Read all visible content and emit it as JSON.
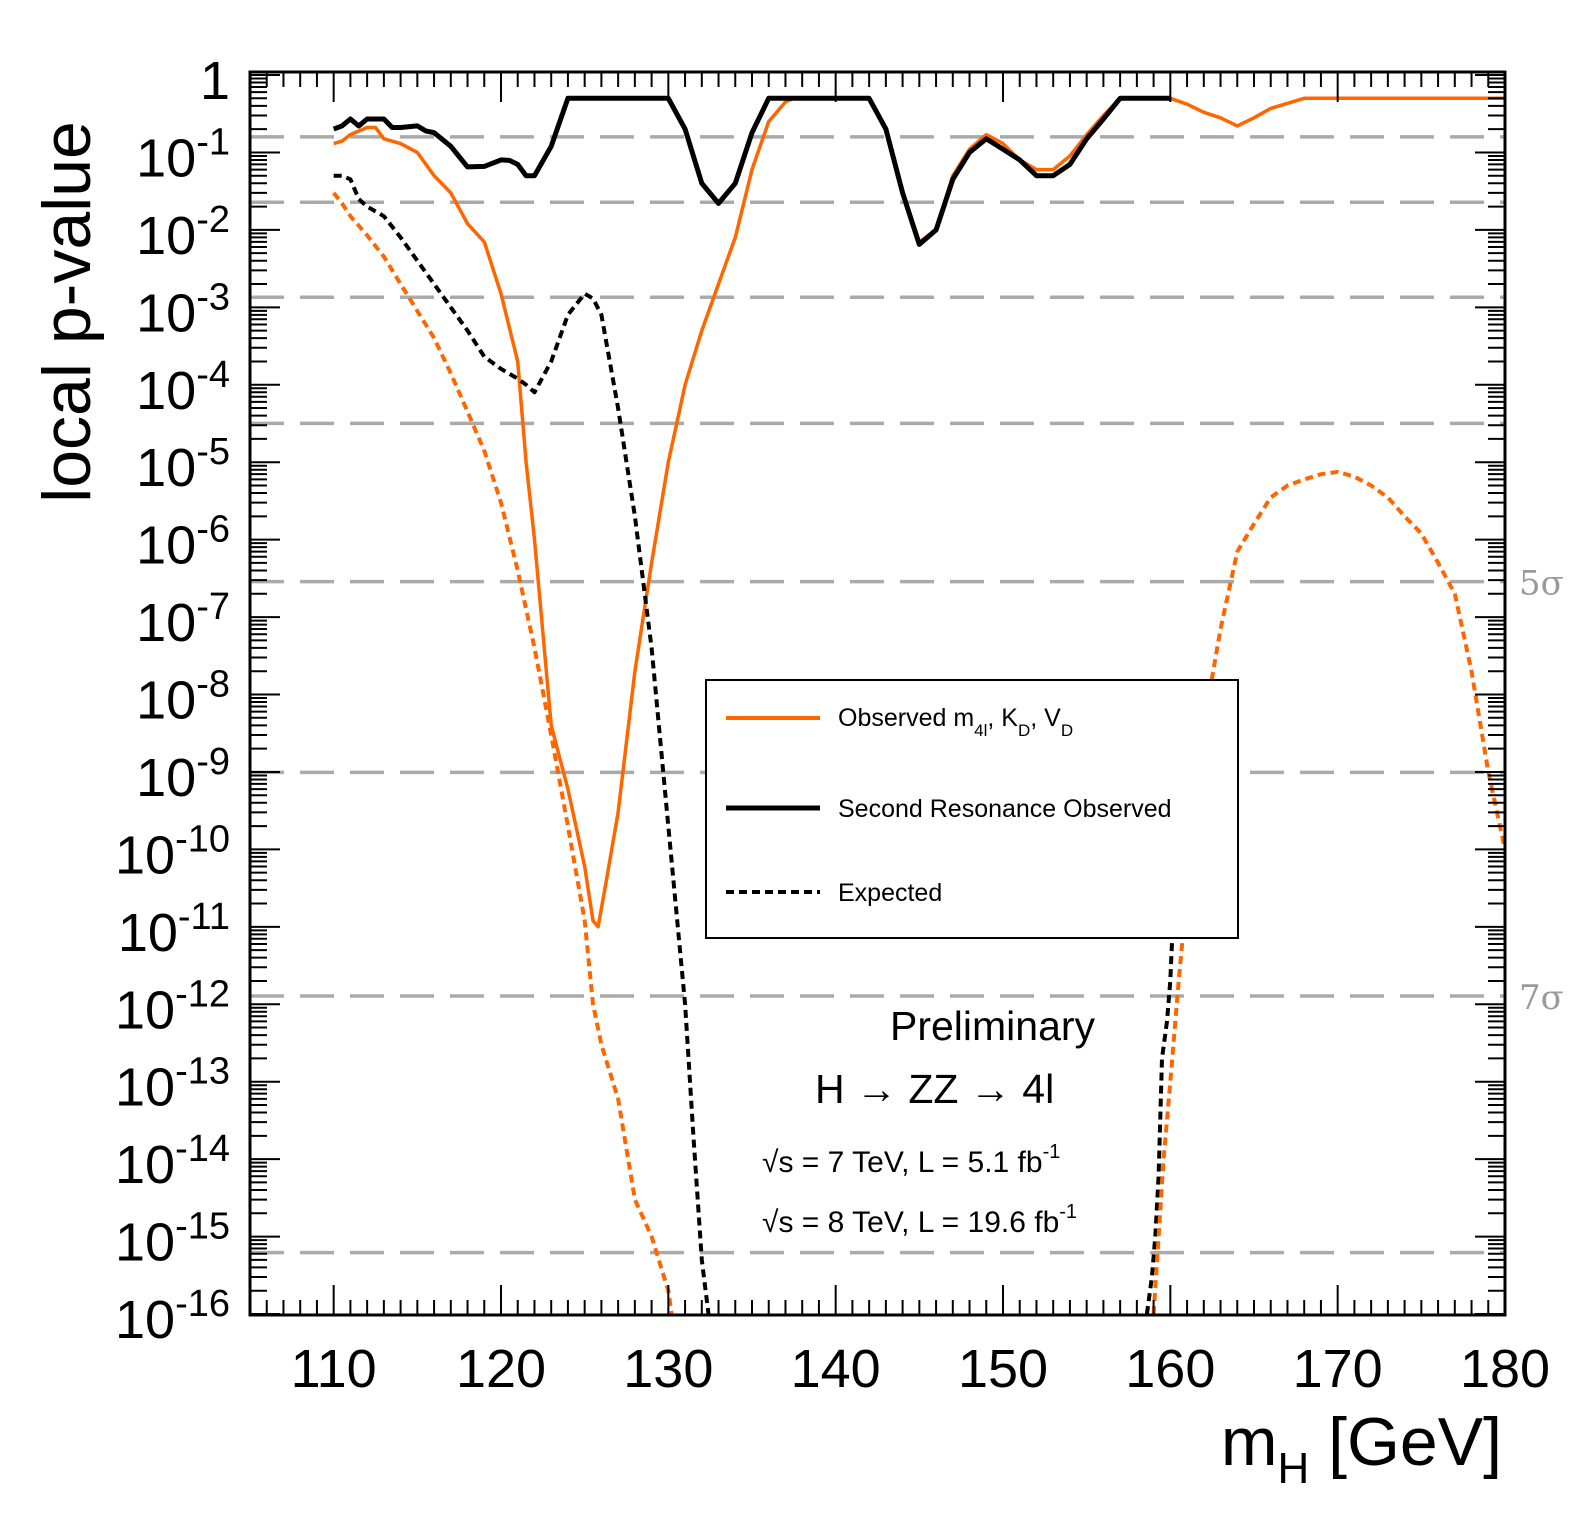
{
  "chart_data": {
    "type": "line",
    "xlabel": "m",
    "xlabel_sub": "H",
    "xlabel_unit": " [GeV]",
    "ylabel": "local p-value",
    "xlim": [
      105,
      180
    ],
    "ylim": [
      1e-16,
      1
    ],
    "y_scale": "log",
    "x_ticks": [
      110,
      120,
      130,
      140,
      150,
      160,
      170,
      180
    ],
    "y_ticks": [
      {
        "exp": 0,
        "label": "1"
      },
      {
        "exp": -1,
        "label": "-1"
      },
      {
        "exp": -2,
        "label": "-2"
      },
      {
        "exp": -3,
        "label": "-3"
      },
      {
        "exp": -4,
        "label": "-4"
      },
      {
        "exp": -5,
        "label": "-5"
      },
      {
        "exp": -6,
        "label": "-6"
      },
      {
        "exp": -7,
        "label": "-7"
      },
      {
        "exp": -8,
        "label": "-8"
      },
      {
        "exp": -9,
        "label": "-9"
      },
      {
        "exp": -10,
        "label": "-10"
      },
      {
        "exp": -11,
        "label": "-11"
      },
      {
        "exp": -12,
        "label": "-12"
      },
      {
        "exp": -13,
        "label": "-13"
      },
      {
        "exp": -14,
        "label": "-14"
      },
      {
        "exp": -15,
        "label": "-15"
      },
      {
        "exp": -16,
        "label": "-16"
      }
    ],
    "y_tick_base": "10",
    "sigma_lines": [
      {
        "label": "",
        "p": 0.1587
      },
      {
        "label": "",
        "p": 0.02275
      },
      {
        "label": "",
        "p": 0.00135
      },
      {
        "label": "",
        "p": 3.17e-05
      },
      {
        "label": "5σ",
        "p": 2.87e-07
      },
      {
        "label": "",
        "p": 9.87e-10
      },
      {
        "label": "7σ",
        "p": 1.28e-12
      },
      {
        "label": "",
        "p": 6.2e-16
      }
    ],
    "legend": {
      "placement": "center-right",
      "entries": [
        {
          "label": "Observed m",
          "sub1": "4l",
          "mid1": ", K",
          "sub2": "D",
          "mid2": ", V",
          "sub3": "D",
          "color": "#ff6600",
          "style": "solid",
          "width": 4
        },
        {
          "label": "Second Resonance Observed",
          "color": "#000000",
          "style": "solid",
          "width": 5
        },
        {
          "label": "Expected",
          "color": "#000000",
          "style": "dashed",
          "width": 4
        }
      ]
    },
    "annotations": {
      "prelim": "Preliminary",
      "process": "H → ZZ → 4l",
      "lumi7_pre": "s = 7 TeV, L = 5.1 fb",
      "lumi7_sup": "-1",
      "lumi8_pre": "s = 8 TeV, L = 19.6 fb",
      "lumi8_sup": "-1"
    },
    "series": [
      {
        "name": "Observed m4l, KD, VD",
        "color": "#ff6600",
        "style": "solid",
        "width": 3.5,
        "x": [
          110,
          110.5,
          111,
          112,
          112.5,
          113,
          114,
          115,
          116,
          117,
          118,
          119,
          120,
          121,
          121.5,
          122,
          123,
          124,
          125,
          125.5,
          125.8,
          126.2,
          127,
          128,
          129,
          130,
          131,
          132,
          133,
          134,
          135,
          136,
          137,
          137.5,
          138,
          139,
          140,
          141,
          142,
          143,
          144,
          145,
          146,
          147,
          148,
          149,
          150,
          151,
          152,
          153,
          154,
          155,
          156,
          157,
          158,
          159,
          160,
          161,
          162,
          163,
          164,
          165,
          166,
          168,
          170,
          172,
          174,
          176,
          178,
          180
        ],
        "y": [
          0.13,
          0.14,
          0.17,
          0.21,
          0.21,
          0.15,
          0.13,
          0.1,
          0.05,
          0.03,
          0.012,
          0.007,
          0.0015,
          0.0002,
          1e-05,
          1e-06,
          4e-09,
          6e-10,
          6e-11,
          1.2e-11,
          1e-11,
          3e-11,
          3e-10,
          2e-08,
          5e-07,
          1e-05,
          0.0001,
          0.0005,
          0.002,
          0.008,
          0.06,
          0.25,
          0.45,
          0.5,
          0.5,
          0.5,
          0.5,
          0.5,
          0.5,
          0.2,
          0.03,
          0.007,
          0.01,
          0.05,
          0.11,
          0.17,
          0.13,
          0.08,
          0.06,
          0.06,
          0.09,
          0.17,
          0.3,
          0.5,
          0.5,
          0.5,
          0.5,
          0.42,
          0.33,
          0.28,
          0.22,
          0.28,
          0.37,
          0.5,
          0.5,
          0.5,
          0.5,
          0.5,
          0.5,
          0.5
        ]
      },
      {
        "name": "Second Resonance Observed",
        "color": "#000000",
        "style": "solid",
        "width": 5,
        "x": [
          110,
          110.5,
          111,
          111.5,
          112,
          113,
          113.5,
          114,
          115,
          115.5,
          116,
          117,
          118,
          119,
          120,
          120.5,
          121,
          121.5,
          122,
          123,
          124,
          125,
          126,
          127,
          128,
          129,
          130,
          131,
          132,
          133,
          134,
          135,
          136,
          137,
          138,
          139,
          140,
          141,
          142,
          143,
          144,
          145,
          146,
          147,
          148,
          149,
          150,
          151,
          152,
          153,
          154,
          155,
          156,
          157,
          158,
          159,
          160
        ],
        "y": [
          0.2,
          0.22,
          0.27,
          0.22,
          0.27,
          0.27,
          0.21,
          0.21,
          0.22,
          0.19,
          0.18,
          0.12,
          0.065,
          0.066,
          0.08,
          0.079,
          0.07,
          0.05,
          0.05,
          0.12,
          0.5,
          0.5,
          0.5,
          0.5,
          0.5,
          0.5,
          0.5,
          0.2,
          0.04,
          0.022,
          0.04,
          0.18,
          0.5,
          0.5,
          0.5,
          0.5,
          0.5,
          0.5,
          0.5,
          0.2,
          0.03,
          0.0065,
          0.01,
          0.045,
          0.1,
          0.15,
          0.11,
          0.08,
          0.05,
          0.05,
          0.07,
          0.15,
          0.27,
          0.5,
          0.5,
          0.5,
          0.5
        ]
      },
      {
        "name": "Expected",
        "color": "#000000",
        "style": "dashed",
        "width": 4,
        "x": [
          110,
          110.5,
          111,
          111.5,
          112,
          113,
          114,
          115,
          116,
          117,
          118,
          119,
          120,
          121,
          121.5,
          122,
          123,
          124,
          125,
          125.5,
          126,
          127,
          128,
          129,
          130,
          131,
          131.5,
          132,
          132.4
        ],
        "y": [
          0.05,
          0.05,
          0.045,
          0.025,
          0.02,
          0.015,
          0.008,
          0.004,
          0.002,
          0.001,
          0.0005,
          0.00023,
          0.00016,
          0.00012,
          0.0001,
          8e-05,
          0.0002,
          0.0008,
          0.0015,
          0.0013,
          0.0008,
          5e-05,
          2e-06,
          4e-08,
          2e-10,
          1e-12,
          2e-14,
          5e-16,
          1e-16
        ]
      },
      {
        "name": "Expected (high mass)",
        "color": "#000000",
        "style": "dashed",
        "width": 4,
        "x": [
          158.6,
          158.9,
          159.1,
          159.3,
          159.5,
          159.8,
          160,
          160.2
        ],
        "y": [
          1e-16,
          3e-16,
          1e-15,
          6e-15,
          2e-13,
          6e-13,
          2e-12,
          2e-11
        ]
      },
      {
        "name": "Expected (orange)",
        "color": "#ff6600",
        "style": "dashed",
        "width": 4,
        "x": [
          110,
          110.5,
          111,
          112,
          113,
          114,
          115,
          116,
          117,
          118,
          119,
          120,
          121,
          122,
          123,
          124,
          125,
          125.5,
          126,
          127,
          128,
          129,
          130,
          130.2
        ],
        "y": [
          0.03,
          0.022,
          0.015,
          0.0085,
          0.0045,
          0.002,
          0.0009,
          0.0004,
          0.00014,
          4.5e-05,
          1.4e-05,
          3e-06,
          4e-07,
          4e-08,
          3e-09,
          2e-10,
          1.2e-11,
          1e-12,
          3e-13,
          6e-14,
          3e-15,
          1e-15,
          2e-16,
          1e-16
        ]
      },
      {
        "name": "Expected (orange, high mass)",
        "color": "#ff6600",
        "style": "dashed",
        "width": 4,
        "x": [
          159,
          159.3,
          159.6,
          160,
          160.5,
          161,
          162,
          163,
          164,
          165,
          166,
          167,
          168,
          169,
          170,
          171,
          172,
          173,
          174,
          175,
          176,
          177,
          178,
          179,
          180
        ],
        "y": [
          1e-16,
          1e-15,
          1e-14,
          1e-13,
          2e-12,
          3e-11,
          4e-09,
          7e-08,
          7e-07,
          1.6e-06,
          3.5e-06,
          5e-06,
          6e-06,
          7e-06,
          7.5e-06,
          6.5e-06,
          5e-06,
          3.5e-06,
          2e-06,
          1.2e-06,
          5e-07,
          2e-07,
          2e-08,
          1e-09,
          1e-10
        ]
      }
    ]
  }
}
